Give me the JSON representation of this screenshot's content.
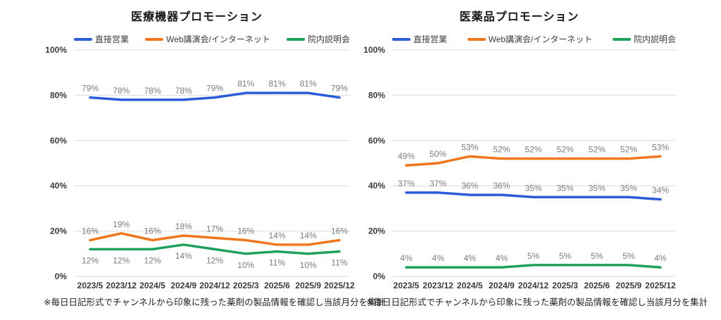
{
  "page": {
    "background": "#ffffff"
  },
  "chart_data": [
    {
      "type": "line",
      "title": "医療機器プロモーション",
      "categories": [
        "2023/5",
        "2023/12",
        "2024/5",
        "2024/9",
        "2024/12",
        "2025/3",
        "2025/6",
        "2025/9",
        "2025/12"
      ],
      "series": [
        {
          "name": "直接営業",
          "color": "#2b5cd9",
          "values": [
            79,
            78,
            78,
            78,
            79,
            81,
            81,
            81,
            79
          ],
          "label_position": "above"
        },
        {
          "name": "Web講演会/インターネット",
          "color": "#f0761e",
          "values": [
            16,
            19,
            16,
            18,
            17,
            16,
            14,
            14,
            16
          ],
          "label_position": "above"
        },
        {
          "name": "院内説明会",
          "color": "#1ea15a",
          "values": [
            12,
            12,
            12,
            14,
            12,
            10,
            11,
            10,
            11
          ],
          "label_position": "below"
        }
      ],
      "value_suffix": "%",
      "ylim": [
        0,
        100
      ],
      "yticks": [
        "0%",
        "20%",
        "40%",
        "60%",
        "80%",
        "100%"
      ],
      "grid": true,
      "legend_position": "top",
      "footnote": "※毎日日記形式でチャンネルから印象に残った薬剤の製品情報を確認し当該月分を集計"
    },
    {
      "type": "line",
      "title": "医薬品プロモーション",
      "categories": [
        "2023/5",
        "2023/12",
        "2024/5",
        "2024/9",
        "2024/12",
        "2025/3",
        "2025/6",
        "2025/9",
        "2025/12"
      ],
      "series": [
        {
          "name": "直接営業",
          "color": "#2b5cd9",
          "values": [
            37,
            37,
            36,
            36,
            35,
            35,
            35,
            35,
            34
          ],
          "label_position": "above"
        },
        {
          "name": "Web講演会/インターネット",
          "color": "#f0761e",
          "values": [
            49,
            50,
            53,
            52,
            52,
            52,
            52,
            52,
            53
          ],
          "label_position": "above"
        },
        {
          "name": "院内説明会",
          "color": "#1ea15a",
          "values": [
            4,
            4,
            4,
            4,
            5,
            5,
            5,
            5,
            4
          ],
          "label_position": "above"
        }
      ],
      "value_suffix": "%",
      "ylim": [
        0,
        100
      ],
      "yticks": [
        "0%",
        "20%",
        "40%",
        "60%",
        "80%",
        "100%"
      ],
      "grid": true,
      "legend_position": "top",
      "footnote": "※毎日日記形式でチャンネルから印象に残った薬剤の製品情報を確認し当該月分を集計"
    }
  ]
}
